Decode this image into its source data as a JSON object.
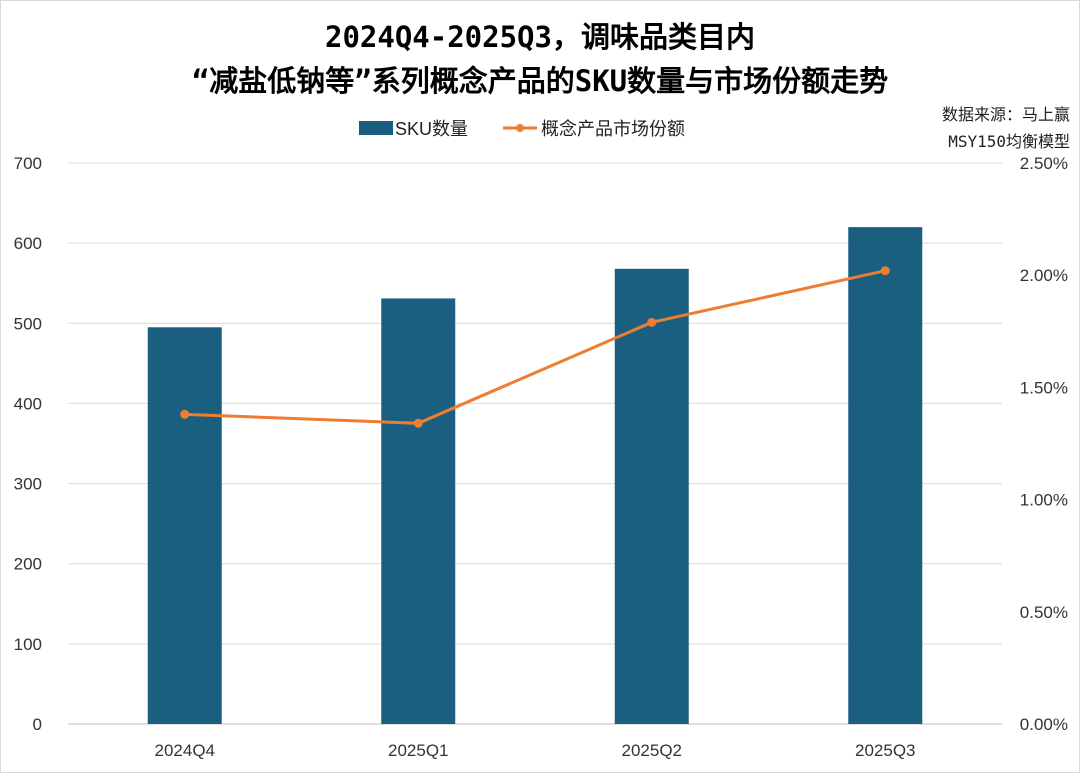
{
  "chart_data": {
    "type": "bar+line",
    "title_line1": "2024Q4-2025Q3，调味品类目内",
    "title_line2": "“减盐低钠等”系列概念产品的SKU数量与市场份额走势",
    "source_line1": "数据来源：马上赢",
    "source_line2": "MSY150均衡模型",
    "categories": [
      "2024Q4",
      "2025Q1",
      "2025Q2",
      "2025Q3"
    ],
    "series": [
      {
        "name": "SKU数量",
        "type": "bar",
        "axis": "left",
        "color": "#1b5f80",
        "values": [
          495,
          531,
          568,
          620
        ]
      },
      {
        "name": "概念产品市场份额",
        "type": "line",
        "axis": "right",
        "color": "#ed7d31",
        "values": [
          1.38,
          1.34,
          1.79,
          2.02
        ]
      }
    ],
    "left_axis": {
      "ylim": [
        0,
        700
      ],
      "ticks": [
        "0",
        "100",
        "200",
        "300",
        "400",
        "500",
        "600",
        "700"
      ]
    },
    "right_axis": {
      "ylim": [
        0,
        2.5
      ],
      "ticks": [
        "0.00%",
        "0.50%",
        "1.00%",
        "1.50%",
        "2.00%",
        "2.50%"
      ]
    },
    "grid": true,
    "legend": "top"
  }
}
